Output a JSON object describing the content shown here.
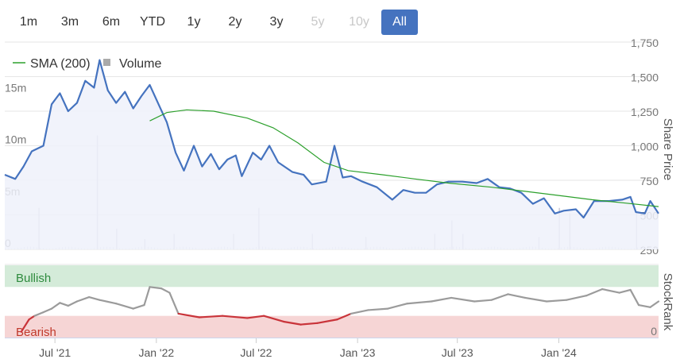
{
  "range_selector": {
    "buttons": [
      {
        "label": "1m",
        "state": "normal"
      },
      {
        "label": "3m",
        "state": "normal"
      },
      {
        "label": "6m",
        "state": "normal"
      },
      {
        "label": "YTD",
        "state": "normal"
      },
      {
        "label": "1y",
        "state": "normal"
      },
      {
        "label": "2y",
        "state": "normal"
      },
      {
        "label": "3y",
        "state": "normal"
      },
      {
        "label": "5y",
        "state": "disabled"
      },
      {
        "label": "10y",
        "state": "disabled"
      },
      {
        "label": "All",
        "state": "active"
      }
    ]
  },
  "chart_data": {
    "type": "line",
    "x_range": [
      "2021-04-01",
      "2024-06-30"
    ],
    "x_ticks": [
      {
        "date": "2021-07-01",
        "label": "Jul '21"
      },
      {
        "date": "2022-01-01",
        "label": "Jan '22"
      },
      {
        "date": "2022-07-01",
        "label": "Jul '22"
      },
      {
        "date": "2023-01-01",
        "label": "Jan '23"
      },
      {
        "date": "2023-07-01",
        "label": "Jul '23"
      },
      {
        "date": "2024-01-01",
        "label": "Jan '24"
      }
    ],
    "price_axis": {
      "label": "Share Price",
      "ylim": [
        250,
        1750
      ],
      "ticks": [
        "250",
        "500",
        "750",
        "1,000",
        "1,250",
        "1,500",
        "1,750"
      ]
    },
    "volume_axis": {
      "ylim": [
        0,
        20
      ],
      "ticks": [
        {
          "v": 0,
          "label": "0"
        },
        {
          "v": 5,
          "label": "5m"
        },
        {
          "v": 10,
          "label": "10m"
        },
        {
          "v": 15,
          "label": "15m"
        }
      ]
    },
    "legend": [
      {
        "name": "SMA (200)",
        "color": "#2ca02c",
        "marker": "line"
      },
      {
        "name": "Volume",
        "color": "#aaaaaa",
        "marker": "square"
      }
    ],
    "series": [
      {
        "name": "Share Price",
        "color": "#4573bf",
        "points": [
          [
            "2021-04-01",
            790
          ],
          [
            "2021-04-20",
            760
          ],
          [
            "2021-05-05",
            850
          ],
          [
            "2021-05-20",
            960
          ],
          [
            "2021-06-10",
            1000
          ],
          [
            "2021-06-25",
            1300
          ],
          [
            "2021-07-10",
            1380
          ],
          [
            "2021-07-25",
            1250
          ],
          [
            "2021-08-10",
            1310
          ],
          [
            "2021-08-25",
            1470
          ],
          [
            "2021-09-10",
            1420
          ],
          [
            "2021-09-20",
            1620
          ],
          [
            "2021-10-05",
            1400
          ],
          [
            "2021-10-20",
            1310
          ],
          [
            "2021-11-05",
            1390
          ],
          [
            "2021-11-20",
            1270
          ],
          [
            "2021-12-05",
            1360
          ],
          [
            "2021-12-20",
            1440
          ],
          [
            "2022-01-05",
            1300
          ],
          [
            "2022-01-20",
            1170
          ],
          [
            "2022-02-05",
            950
          ],
          [
            "2022-02-20",
            820
          ],
          [
            "2022-03-10",
            1000
          ],
          [
            "2022-03-25",
            850
          ],
          [
            "2022-04-10",
            940
          ],
          [
            "2022-04-25",
            830
          ],
          [
            "2022-05-10",
            900
          ],
          [
            "2022-05-25",
            930
          ],
          [
            "2022-06-05",
            780
          ],
          [
            "2022-06-25",
            950
          ],
          [
            "2022-07-10",
            900
          ],
          [
            "2022-07-25",
            1000
          ],
          [
            "2022-08-10",
            880
          ],
          [
            "2022-09-05",
            810
          ],
          [
            "2022-09-25",
            790
          ],
          [
            "2022-10-10",
            720
          ],
          [
            "2022-11-05",
            740
          ],
          [
            "2022-11-20",
            1000
          ],
          [
            "2022-12-05",
            770
          ],
          [
            "2022-12-20",
            780
          ],
          [
            "2023-01-10",
            740
          ],
          [
            "2023-02-05",
            700
          ],
          [
            "2023-03-05",
            610
          ],
          [
            "2023-03-25",
            680
          ],
          [
            "2023-04-15",
            660
          ],
          [
            "2023-05-05",
            660
          ],
          [
            "2023-05-25",
            720
          ],
          [
            "2023-06-15",
            740
          ],
          [
            "2023-07-10",
            740
          ],
          [
            "2023-08-05",
            730
          ],
          [
            "2023-08-25",
            760
          ],
          [
            "2023-09-15",
            700
          ],
          [
            "2023-10-05",
            690
          ],
          [
            "2023-10-25",
            660
          ],
          [
            "2023-11-15",
            580
          ],
          [
            "2023-12-05",
            620
          ],
          [
            "2023-12-25",
            510
          ],
          [
            "2024-01-10",
            530
          ],
          [
            "2024-02-01",
            540
          ],
          [
            "2024-02-15",
            480
          ],
          [
            "2024-03-05",
            600
          ],
          [
            "2024-04-01",
            600
          ],
          [
            "2024-04-25",
            610
          ],
          [
            "2024-05-10",
            630
          ],
          [
            "2024-05-20",
            520
          ],
          [
            "2024-06-05",
            510
          ],
          [
            "2024-06-15",
            600
          ],
          [
            "2024-06-30",
            510
          ]
        ]
      },
      {
        "name": "SMA (200)",
        "color": "#2ca02c",
        "points": [
          [
            "2021-12-20",
            1180
          ],
          [
            "2022-01-20",
            1240
          ],
          [
            "2022-02-25",
            1260
          ],
          [
            "2022-04-15",
            1250
          ],
          [
            "2022-06-15",
            1200
          ],
          [
            "2022-08-01",
            1130
          ],
          [
            "2022-09-15",
            1020
          ],
          [
            "2022-11-01",
            880
          ],
          [
            "2022-12-15",
            820
          ],
          [
            "2023-02-15",
            790
          ],
          [
            "2023-04-15",
            760
          ],
          [
            "2023-06-15",
            730
          ],
          [
            "2023-09-01",
            700
          ],
          [
            "2023-11-01",
            670
          ],
          [
            "2024-01-01",
            640
          ],
          [
            "2024-03-01",
            610
          ],
          [
            "2024-05-01",
            585
          ],
          [
            "2024-06-30",
            560
          ]
        ]
      }
    ],
    "volume": {
      "name": "Volume",
      "color": "#aaaaaa",
      "bars": [
        [
          "2021-06-01",
          4
        ],
        [
          "2021-09-15",
          11
        ],
        [
          "2021-10-20",
          2
        ],
        [
          "2021-12-10",
          1
        ],
        [
          "2022-02-01",
          1.5
        ],
        [
          "2022-05-20",
          1.5
        ],
        [
          "2022-07-05",
          4
        ],
        [
          "2022-10-10",
          1.5
        ],
        [
          "2023-01-15",
          1.2
        ],
        [
          "2023-05-20",
          1.5
        ],
        [
          "2023-06-20",
          2.8
        ],
        [
          "2023-07-10",
          1.5
        ],
        [
          "2023-11-25",
          1.2
        ],
        [
          "2024-01-01",
          4
        ],
        [
          "2024-01-20",
          3.5
        ],
        [
          "2024-05-20",
          3.6
        ]
      ]
    },
    "stockrank": {
      "label": "StockRank",
      "ylim": [
        0,
        100
      ],
      "ticks": [
        {
          "v": 0,
          "label": "0"
        }
      ],
      "bands": [
        {
          "label": "Bullish",
          "from": 70,
          "to": 100,
          "color": "#d4ebd9",
          "label_color": "#2e8b3e"
        },
        {
          "label": "Bearish",
          "from": 0,
          "to": 30,
          "color": "#f6d5d5",
          "label_color": "#c0392b"
        }
      ],
      "points": [
        [
          "2021-05-01",
          8
        ],
        [
          "2021-05-15",
          25
        ],
        [
          "2021-05-25",
          30
        ],
        [
          "2021-06-10",
          35
        ],
        [
          "2021-06-25",
          40
        ],
        [
          "2021-07-10",
          48
        ],
        [
          "2021-07-25",
          44
        ],
        [
          "2021-08-10",
          50
        ],
        [
          "2021-09-01",
          56
        ],
        [
          "2021-09-20",
          52
        ],
        [
          "2021-10-20",
          47
        ],
        [
          "2021-11-20",
          40
        ],
        [
          "2021-12-10",
          45
        ],
        [
          "2021-12-20",
          70
        ],
        [
          "2022-01-10",
          68
        ],
        [
          "2022-01-25",
          62
        ],
        [
          "2022-02-10",
          33
        ],
        [
          "2022-03-20",
          28
        ],
        [
          "2022-05-01",
          30
        ],
        [
          "2022-06-15",
          27
        ],
        [
          "2022-07-15",
          30
        ],
        [
          "2022-08-20",
          22
        ],
        [
          "2022-09-20",
          18
        ],
        [
          "2022-10-20",
          20
        ],
        [
          "2022-11-25",
          25
        ],
        [
          "2022-12-20",
          33
        ],
        [
          "2023-01-20",
          38
        ],
        [
          "2023-02-25",
          40
        ],
        [
          "2023-04-01",
          47
        ],
        [
          "2023-05-15",
          50
        ],
        [
          "2023-06-20",
          55
        ],
        [
          "2023-08-01",
          50
        ],
        [
          "2023-09-01",
          52
        ],
        [
          "2023-10-01",
          60
        ],
        [
          "2023-11-01",
          55
        ],
        [
          "2023-12-10",
          50
        ],
        [
          "2024-01-15",
          52
        ],
        [
          "2024-02-20",
          58
        ],
        [
          "2024-03-20",
          67
        ],
        [
          "2024-04-20",
          62
        ],
        [
          "2024-05-10",
          66
        ],
        [
          "2024-05-25",
          45
        ],
        [
          "2024-06-15",
          42
        ],
        [
          "2024-06-30",
          50
        ]
      ]
    }
  }
}
